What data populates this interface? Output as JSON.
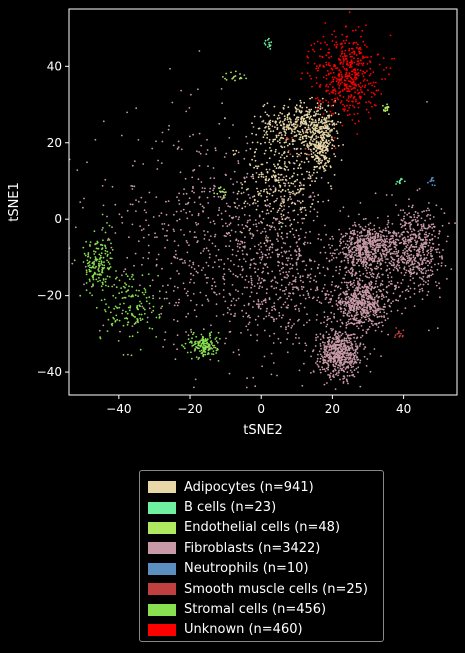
{
  "chart_data": {
    "type": "scatter",
    "title": "",
    "xlabel": "tSNE2",
    "ylabel": "tSNE1",
    "xlim": [
      -54,
      55
    ],
    "ylim": [
      -46,
      55
    ],
    "x_ticks": [
      -40,
      -20,
      0,
      20,
      40
    ],
    "y_ticks": [
      -40,
      -20,
      0,
      20,
      40
    ],
    "grid": false,
    "legend_placement": "below",
    "series": [
      {
        "name": "Adipocytes (n=941)",
        "color": "#e8d8a8",
        "count": 941,
        "clusters": [
          {
            "cx": 5,
            "cy": 10,
            "sx": 5,
            "sy": 7
          },
          {
            "cx": 10,
            "cy": 25,
            "sx": 5,
            "sy": 3
          },
          {
            "cx": 17,
            "cy": 20,
            "sx": 2,
            "sy": 4
          }
        ]
      },
      {
        "name": "B cells (n=23)",
        "color": "#6ef0a0",
        "count": 23,
        "clusters": [
          {
            "cx": 2,
            "cy": 46,
            "sx": 0.6,
            "sy": 0.8
          },
          {
            "cx": 39,
            "cy": 10,
            "sx": 0.6,
            "sy": 0.5
          }
        ]
      },
      {
        "name": "Endothelial cells (n=48)",
        "color": "#b0e860",
        "count": 48,
        "clusters": [
          {
            "cx": -7,
            "cy": 37,
            "sx": 1.2,
            "sy": 1
          },
          {
            "cx": -11,
            "cy": 7,
            "sx": 0.8,
            "sy": 0.8
          },
          {
            "cx": 35,
            "cy": 29,
            "sx": 0.6,
            "sy": 0.8
          }
        ]
      },
      {
        "name": "Fibroblasts (n=3422)",
        "color": "#c89aa8",
        "count": 3422,
        "clusters": [
          {
            "cx": -15,
            "cy": -2,
            "sx": 17,
            "sy": 15
          },
          {
            "cx": 5,
            "cy": -15,
            "sx": 11,
            "sy": 10
          },
          {
            "cx": 22,
            "cy": -35,
            "sx": 3,
            "sy": 3
          },
          {
            "cx": 43,
            "cy": -8,
            "sx": 4,
            "sy": 6
          },
          {
            "cx": 30,
            "cy": -8,
            "sx": 4,
            "sy": 3
          },
          {
            "cx": 28,
            "cy": -22,
            "sx": 4,
            "sy": 3
          }
        ]
      },
      {
        "name": "Neutrophils (n=10)",
        "color": "#5b8fc0",
        "count": 10,
        "clusters": [
          {
            "cx": 48,
            "cy": 10,
            "sx": 0.4,
            "sy": 0.6
          }
        ]
      },
      {
        "name": "Smooth muscle cells (n=25)",
        "color": "#c04040",
        "count": 25,
        "clusters": [
          {
            "cx": 39,
            "cy": -30,
            "sx": 1,
            "sy": 0.8
          },
          {
            "cx": 10,
            "cy": 20,
            "sx": 2,
            "sy": 3
          }
        ]
      },
      {
        "name": "Stromal cells (n=456)",
        "color": "#88e050",
        "count": 456,
        "clusters": [
          {
            "cx": -37,
            "cy": -22,
            "sx": 4,
            "sy": 5
          },
          {
            "cx": -46,
            "cy": -12,
            "sx": 2,
            "sy": 4
          },
          {
            "cx": -16,
            "cy": -33,
            "sx": 2,
            "sy": 1.5
          }
        ]
      },
      {
        "name": "Unknown (n=460)",
        "color": "#ff0000",
        "count": 460,
        "clusters": [
          {
            "cx": 24,
            "cy": 38,
            "sx": 4.5,
            "sy": 5.5
          }
        ]
      }
    ]
  }
}
